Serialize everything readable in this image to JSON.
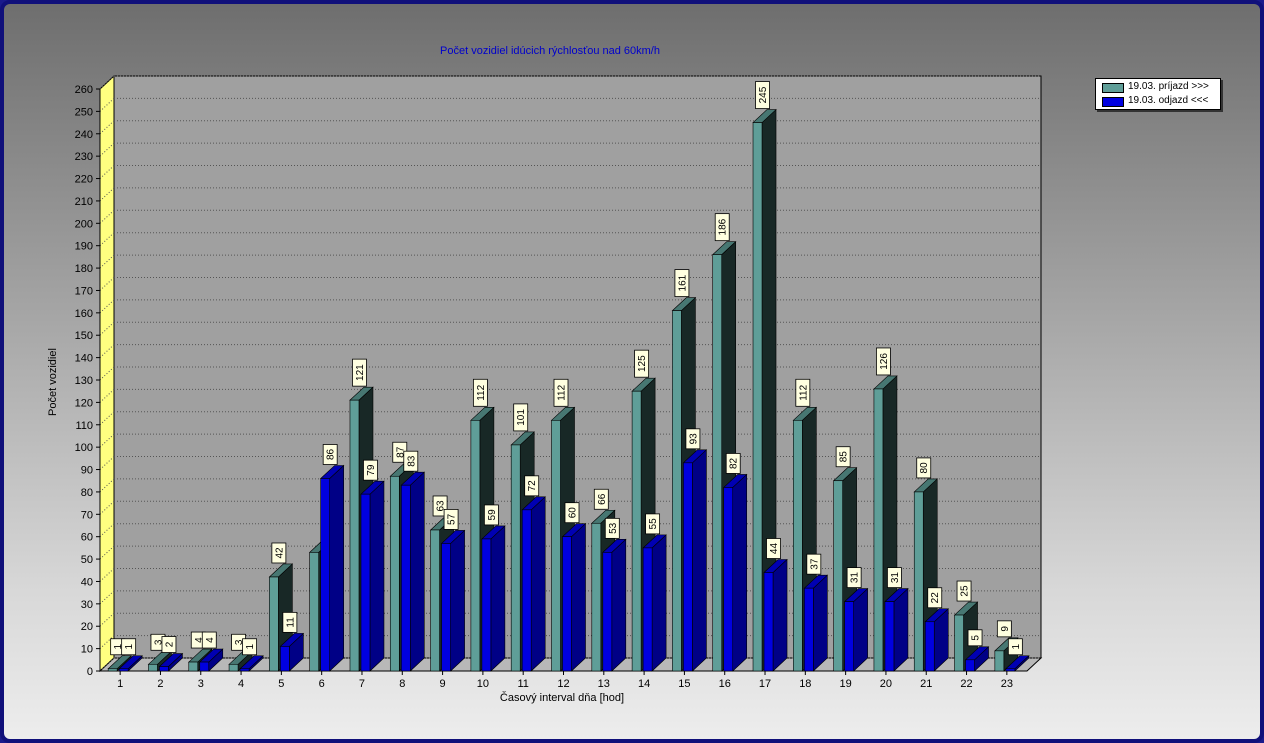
{
  "chart_data": {
    "type": "bar",
    "title": "Počet vozidiel idúcich rýchlosťou nad 60km/h",
    "xlabel": "Časový interval dňa [hod]",
    "ylabel": "Počet vozidiel",
    "ylim": [
      0,
      260
    ],
    "ytick_step": 10,
    "grid": true,
    "legend_position": "top-right",
    "categories": [
      "1",
      "2",
      "3",
      "4",
      "5",
      "6",
      "7",
      "8",
      "9",
      "10",
      "11",
      "12",
      "13",
      "14",
      "15",
      "16",
      "17",
      "18",
      "19",
      "20",
      "21",
      "22",
      "23"
    ],
    "series": [
      {
        "name": "19.03.  príjazd >>>",
        "color": "#5f9e98",
        "values": [
          1,
          3,
          4,
          3,
          42,
          53,
          121,
          87,
          63,
          112,
          101,
          112,
          66,
          125,
          161,
          186,
          245,
          112,
          85,
          126,
          80,
          25,
          9
        ],
        "labels": [
          "1",
          "3",
          "4",
          "3",
          "42",
          "",
          "121",
          "87",
          "63",
          "112",
          "101",
          "112",
          "66",
          "125",
          "161",
          "186",
          "245",
          "112",
          "85",
          "126",
          "80",
          "25",
          "9"
        ]
      },
      {
        "name": "19.03.  odjazd <<<",
        "color": "#0000e0",
        "values": [
          1,
          2,
          4,
          1,
          11,
          86,
          79,
          83,
          57,
          59,
          72,
          60,
          53,
          55,
          93,
          82,
          44,
          37,
          31,
          31,
          22,
          5,
          1
        ],
        "labels": [
          "1",
          "2",
          "4",
          "1",
          "11",
          "86",
          "79",
          "83",
          "57",
          "59",
          "72",
          "60",
          "53",
          "55",
          "93",
          "82",
          "44",
          "37",
          "31",
          "31",
          "22",
          "5",
          "1"
        ]
      }
    ]
  }
}
